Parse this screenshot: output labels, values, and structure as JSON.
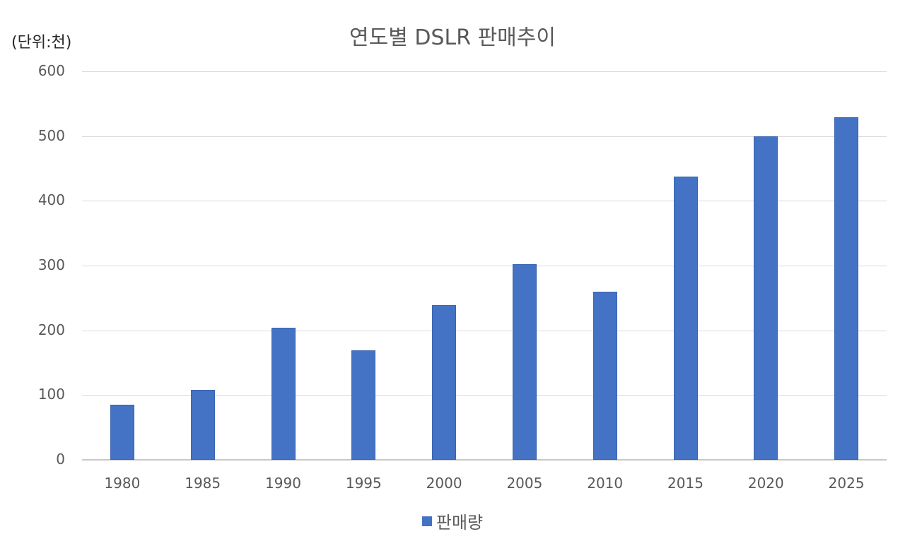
{
  "chart_data": {
    "type": "bar",
    "title": "연도별 DSLR 판매추이",
    "unit_label": "(단위:천)",
    "xlabel": "",
    "ylabel": "",
    "categories": [
      "1980",
      "1985",
      "1990",
      "1995",
      "2000",
      "2005",
      "2010",
      "2015",
      "2020",
      "2025"
    ],
    "series": [
      {
        "name": "판매량",
        "color": "#4472c4",
        "values": [
          85,
          108,
          204,
          169,
          239,
          302,
          260,
          437,
          500,
          529
        ]
      }
    ],
    "ylim": [
      0,
      600
    ],
    "yticks": [
      0,
      100,
      200,
      300,
      400,
      500,
      600
    ],
    "grid": true,
    "legend_position": "bottom"
  }
}
